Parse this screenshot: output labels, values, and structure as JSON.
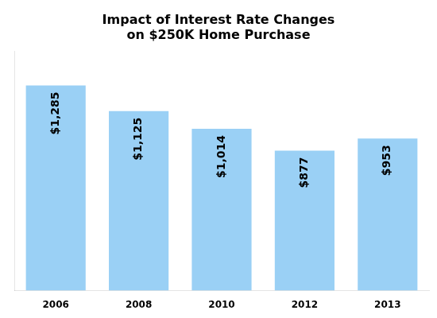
{
  "chart_data": {
    "type": "bar",
    "title": "Impact of Interest Rate Changes\non $250K Home Purchase",
    "categories": [
      "2006",
      "2008",
      "2010",
      "2012",
      "2013"
    ],
    "values": [
      1285,
      1125,
      1014,
      877,
      953
    ],
    "value_labels": [
      "$1,285",
      "$1,125",
      "$1,014",
      "$877",
      "$953"
    ],
    "data_labels": true,
    "ylim": [
      0,
      1500
    ],
    "yticks": [],
    "grid": false,
    "tick_labels": "x"
  }
}
